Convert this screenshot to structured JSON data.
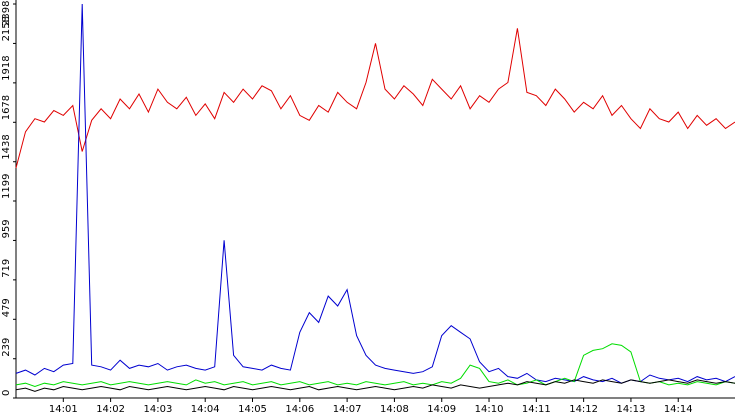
{
  "chart_data": {
    "type": "line",
    "x": [
      0,
      0.2,
      0.4,
      0.6,
      0.8,
      1,
      1.2,
      1.4,
      1.6,
      1.8,
      2,
      2.2,
      2.4,
      2.6,
      2.8,
      3,
      3.2,
      3.4,
      3.6,
      3.8,
      4,
      4.2,
      4.4,
      4.6,
      4.8,
      5,
      5.2,
      5.4,
      5.6,
      5.8,
      6,
      6.2,
      6.4,
      6.6,
      6.8,
      7,
      7.2,
      7.4,
      7.6,
      7.8,
      8,
      8.2,
      8.4,
      8.6,
      8.8,
      9,
      9.2,
      9.4,
      9.6,
      9.8,
      10,
      10.2,
      10.4,
      10.6,
      10.8,
      11,
      11.2,
      11.4,
      11.6,
      11.8,
      12,
      12.2,
      12.4,
      12.6,
      12.8,
      13,
      13.2,
      13.4,
      13.6,
      13.8,
      14,
      14.2,
      14.4,
      14.6,
      14.8,
      15,
      15.2
    ],
    "series": [
      {
        "color": "#e00000",
        "values": [
          1400,
          1620,
          1700,
          1680,
          1750,
          1720,
          1780,
          1500,
          1690,
          1760,
          1700,
          1820,
          1760,
          1850,
          1740,
          1880,
          1800,
          1760,
          1830,
          1720,
          1790,
          1700,
          1860,
          1800,
          1880,
          1820,
          1900,
          1870,
          1760,
          1840,
          1720,
          1690,
          1780,
          1740,
          1860,
          1800,
          1760,
          1920,
          2158,
          1880,
          1820,
          1900,
          1850,
          1780,
          1940,
          1880,
          1820,
          1900,
          1760,
          1840,
          1800,
          1880,
          1920,
          2250,
          1860,
          1840,
          1780,
          1880,
          1820,
          1740,
          1800,
          1760,
          1840,
          1720,
          1780,
          1700,
          1640,
          1760,
          1700,
          1680,
          1740,
          1640,
          1720,
          1660,
          1700,
          1640,
          1680
        ]
      },
      {
        "color": "#0000d0",
        "values": [
          150,
          170,
          140,
          180,
          160,
          200,
          210,
          2398,
          200,
          190,
          170,
          230,
          180,
          200,
          190,
          210,
          170,
          190,
          200,
          180,
          170,
          190,
          960,
          260,
          190,
          180,
          170,
          200,
          180,
          170,
          400,
          520,
          460,
          620,
          560,
          660,
          380,
          260,
          200,
          180,
          170,
          160,
          150,
          160,
          190,
          380,
          440,
          400,
          360,
          220,
          160,
          180,
          130,
          120,
          150,
          110,
          100,
          120,
          110,
          100,
          130,
          110,
          100,
          120,
          90,
          110,
          100,
          140,
          120,
          110,
          120,
          100,
          130,
          110,
          120,
          100,
          130
        ]
      },
      {
        "color": "#00dd00",
        "values": [
          80,
          90,
          70,
          90,
          80,
          100,
          90,
          80,
          90,
          100,
          80,
          90,
          100,
          90,
          80,
          90,
          100,
          90,
          80,
          110,
          90,
          100,
          80,
          90,
          100,
          80,
          90,
          100,
          80,
          90,
          100,
          80,
          90,
          100,
          80,
          90,
          80,
          100,
          90,
          80,
          90,
          100,
          80,
          90,
          80,
          100,
          90,
          120,
          200,
          180,
          100,
          90,
          110,
          80,
          90,
          110,
          80,
          100,
          120,
          100,
          260,
          290,
          300,
          330,
          320,
          280,
          100,
          90,
          100,
          80,
          90,
          80,
          100,
          90,
          80,
          100,
          90
        ]
      },
      {
        "color": "#000000",
        "values": [
          50,
          60,
          40,
          60,
          50,
          70,
          60,
          50,
          60,
          70,
          60,
          50,
          70,
          60,
          50,
          60,
          70,
          60,
          50,
          60,
          70,
          60,
          50,
          70,
          60,
          50,
          60,
          70,
          60,
          50,
          60,
          70,
          50,
          60,
          70,
          60,
          50,
          60,
          70,
          60,
          50,
          60,
          70,
          60,
          80,
          70,
          60,
          80,
          70,
          60,
          70,
          80,
          90,
          80,
          100,
          90,
          80,
          100,
          90,
          110,
          100,
          90,
          110,
          100,
          90,
          110,
          100,
          90,
          100,
          110,
          100,
          90,
          110,
          100,
          90,
          100,
          90
        ]
      }
    ],
    "xlim": [
      0,
      15.2
    ],
    "xticks": [
      {
        "value": 1,
        "label": "14:01"
      },
      {
        "value": 2,
        "label": "14:02"
      },
      {
        "value": 3,
        "label": "14:03"
      },
      {
        "value": 4,
        "label": "14:04"
      },
      {
        "value": 5,
        "label": "14:05"
      },
      {
        "value": 6,
        "label": "14:06"
      },
      {
        "value": 7,
        "label": "14:07"
      },
      {
        "value": 8,
        "label": "14:08"
      },
      {
        "value": 9,
        "label": "14:09"
      },
      {
        "value": 10,
        "label": "14:10"
      },
      {
        "value": 11,
        "label": "14:11"
      },
      {
        "value": 12,
        "label": "14:12"
      },
      {
        "value": 13,
        "label": "14:13"
      },
      {
        "value": 14,
        "label": "14:14"
      }
    ],
    "ylim": [
      0,
      2398
    ],
    "yticks": [
      0,
      239,
      479,
      719,
      959,
      1199,
      1438,
      1678,
      1918,
      2158,
      2398
    ]
  }
}
